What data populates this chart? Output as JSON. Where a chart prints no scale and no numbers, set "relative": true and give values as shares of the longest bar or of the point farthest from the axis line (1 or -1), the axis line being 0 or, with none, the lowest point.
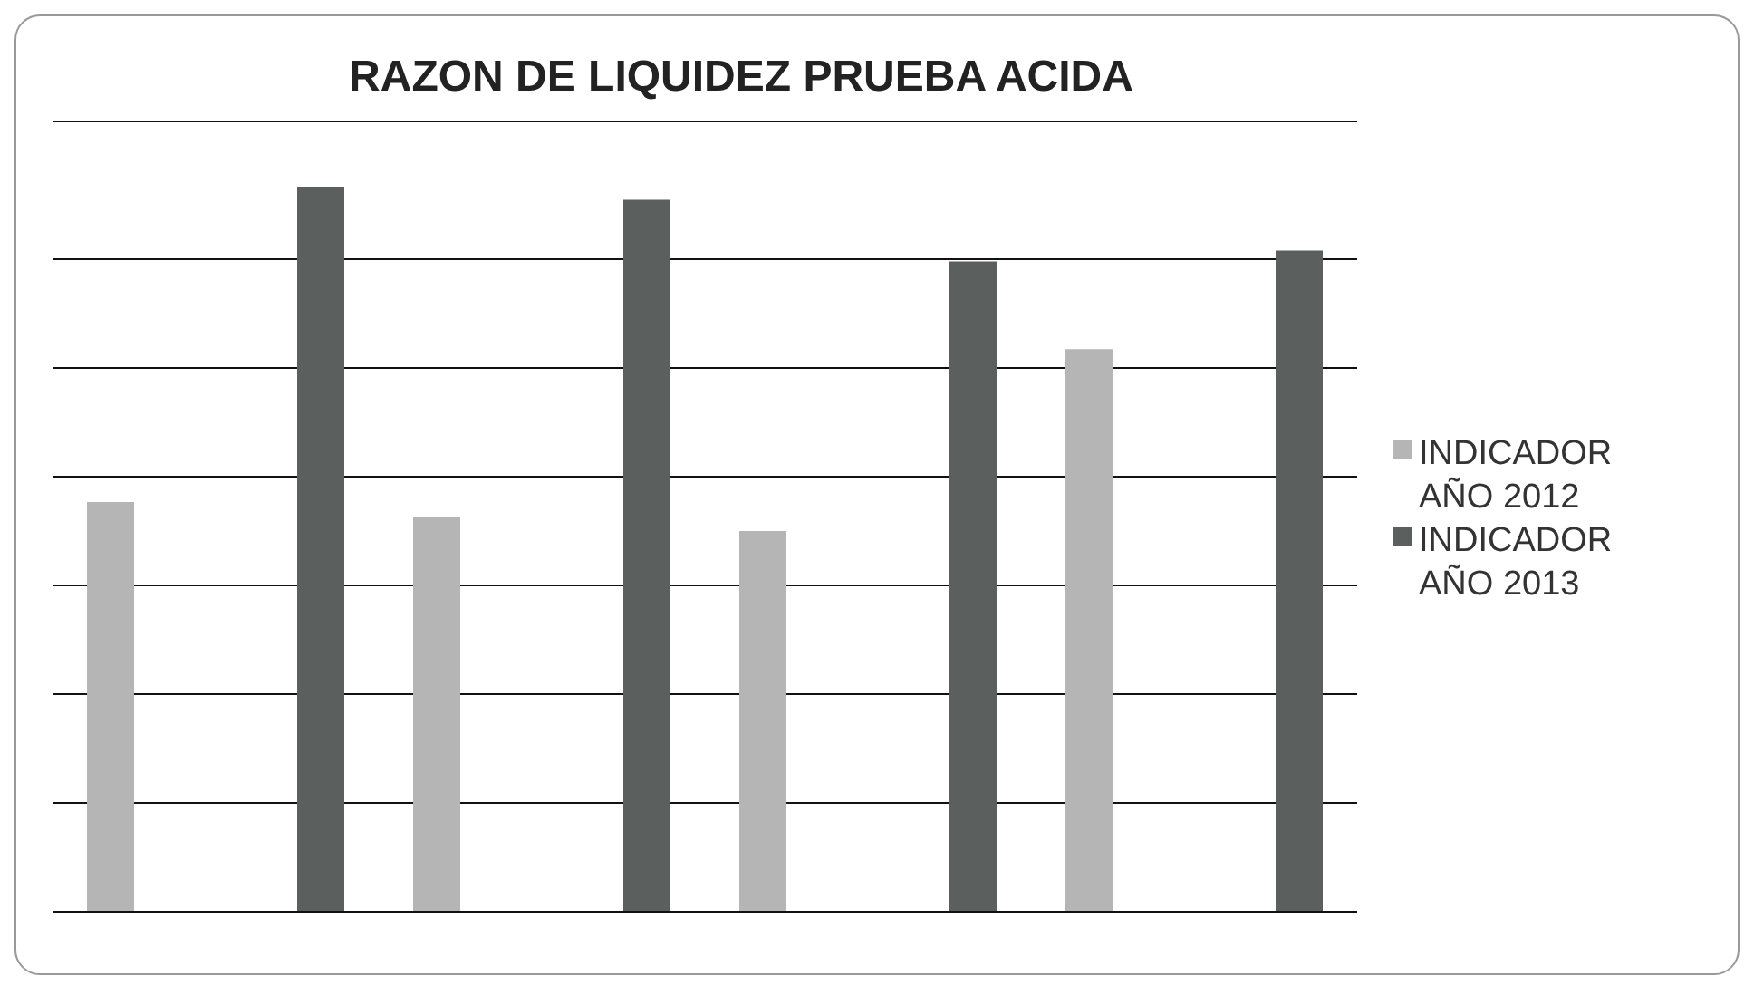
{
  "chart_data": {
    "type": "bar",
    "title": "RAZON DE LIQUIDEZ PRUEBA ACIDA",
    "relative": true,
    "categories": [
      null,
      null,
      null,
      null
    ],
    "series": [
      {
        "name": "INDICADOR AÑO 2012",
        "color": "#b5b5b5",
        "values": [
          0.565,
          0.545,
          0.525,
          0.776
        ]
      },
      {
        "name": "INDICADOR AÑO 2013",
        "color": "#5b5f5d",
        "values": [
          1,
          0.982,
          0.897,
          0.912
        ]
      }
    ],
    "grid": "y",
    "legend": "right"
  }
}
